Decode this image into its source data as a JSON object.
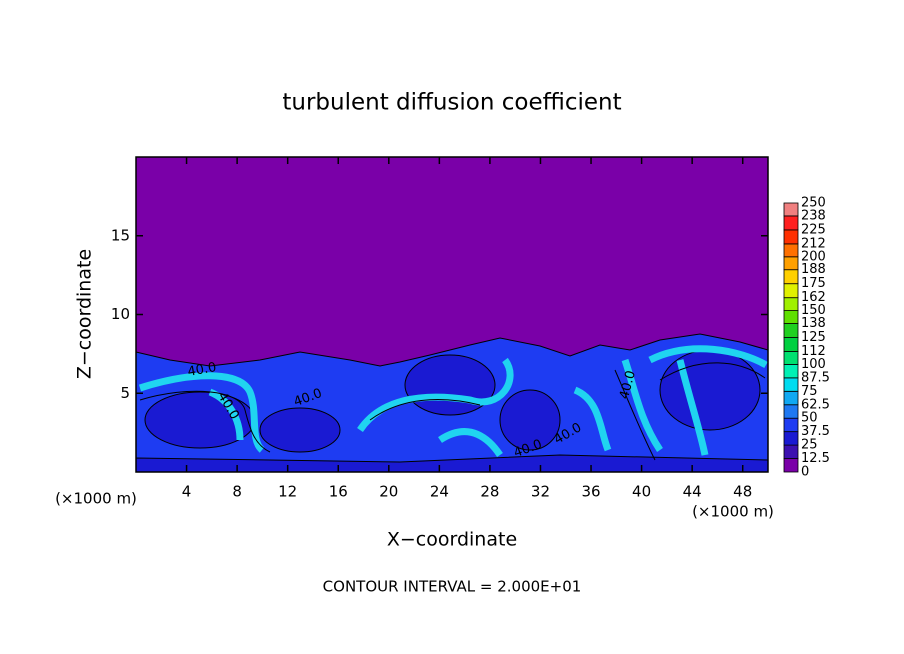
{
  "chart_data": {
    "type": "contour",
    "title": "turbulent diffusion coefficient",
    "x_label": "X−coordinate",
    "y_label": "Z−coordinate",
    "x_unit": "(×1000 m)",
    "footer": "CONTOUR INTERVAL = 2.000E+01",
    "xlim": [
      0,
      50
    ],
    "xticks": [
      4,
      8,
      12,
      16,
      20,
      24,
      28,
      32,
      36,
      40,
      44,
      48
    ],
    "ylim": [
      0,
      20
    ],
    "yticks": [
      5,
      10,
      15
    ],
    "clim": [
      0,
      250
    ],
    "cticks": [
      0,
      12.5,
      25,
      37.5,
      50,
      62.5,
      75,
      87.5,
      100,
      112,
      125,
      138,
      150,
      162,
      175,
      188,
      200,
      212,
      225,
      238,
      250
    ],
    "colors": [
      "#7a00a8",
      "#3c10b0",
      "#1a1ad2",
      "#1e3cf2",
      "#1e78f2",
      "#10a8f2",
      "#00dcf0",
      "#00f0b4",
      "#00e070",
      "#00d040",
      "#20d020",
      "#60e000",
      "#a0f000",
      "#e0f000",
      "#ffd000",
      "#ffa000",
      "#ff7000",
      "#ff3000",
      "#ff2020",
      "#f08080"
    ],
    "contour_labels": [
      "40.0",
      "40.0",
      "40.0",
      "40.0",
      "40.0",
      "40.0"
    ]
  }
}
